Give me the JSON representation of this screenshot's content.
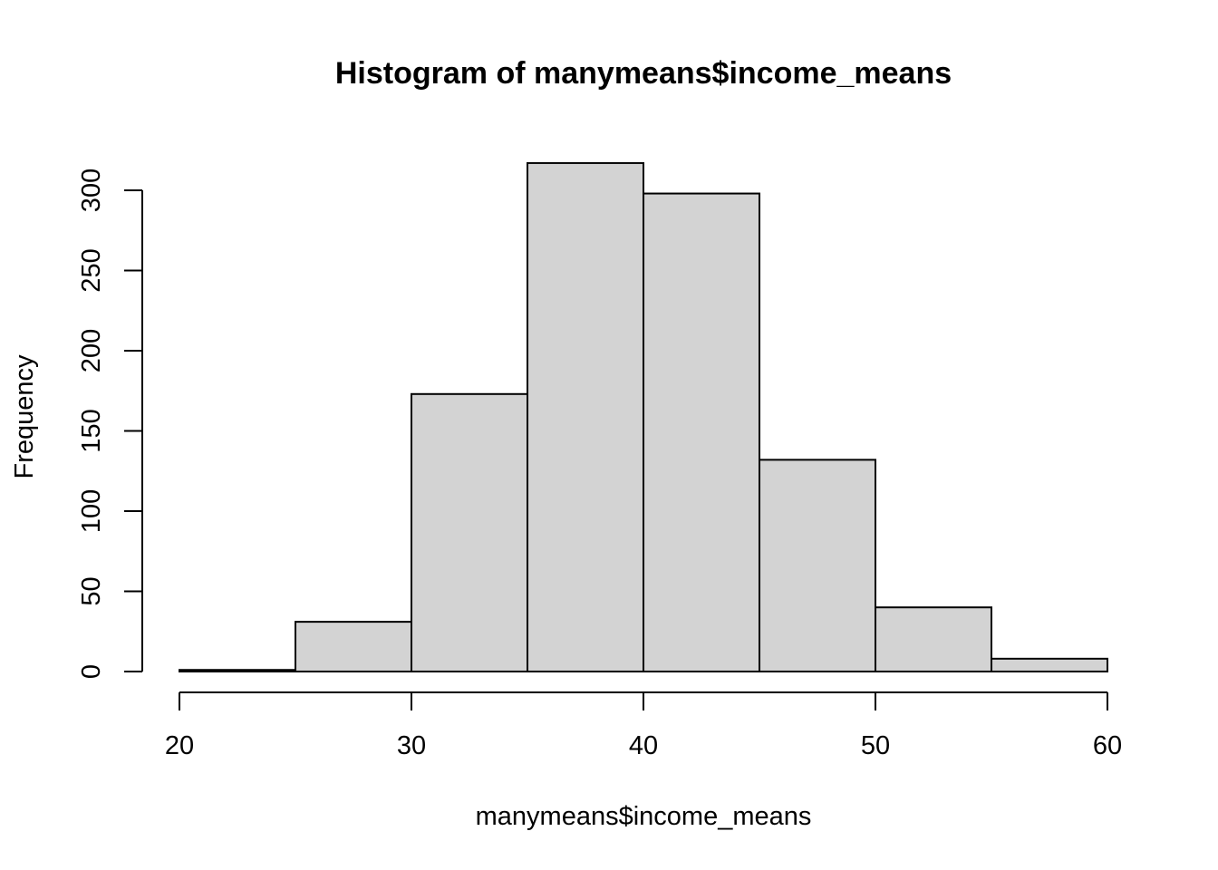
{
  "chart_data": {
    "type": "bar",
    "subtype": "histogram",
    "title": "Histogram of manymeans$income_means",
    "xlabel": "manymeans$income_means",
    "ylabel": "Frequency",
    "bins": [
      {
        "from": 20,
        "to": 25,
        "count": 1
      },
      {
        "from": 25,
        "to": 30,
        "count": 31
      },
      {
        "from": 30,
        "to": 35,
        "count": 173
      },
      {
        "from": 35,
        "to": 40,
        "count": 317
      },
      {
        "from": 40,
        "to": 45,
        "count": 298
      },
      {
        "from": 45,
        "to": 50,
        "count": 132
      },
      {
        "from": 50,
        "to": 55,
        "count": 40
      },
      {
        "from": 55,
        "to": 60,
        "count": 8
      }
    ],
    "xlim": [
      20,
      60
    ],
    "ylim": [
      0,
      317
    ],
    "x_ticks": [
      20,
      30,
      40,
      50,
      60
    ],
    "x_tick_labels": [
      "20",
      "30",
      "40",
      "50",
      "60"
    ],
    "y_ticks": [
      0,
      50,
      100,
      150,
      200,
      250,
      300
    ],
    "y_tick_labels": [
      "0",
      "50",
      "100",
      "150",
      "200",
      "250",
      "300"
    ],
    "grid": false,
    "legend": "none",
    "colors": {
      "bar_fill": "#d3d3d3",
      "bar_stroke": "#000000",
      "axis": "#000000",
      "background": "#ffffff"
    }
  }
}
